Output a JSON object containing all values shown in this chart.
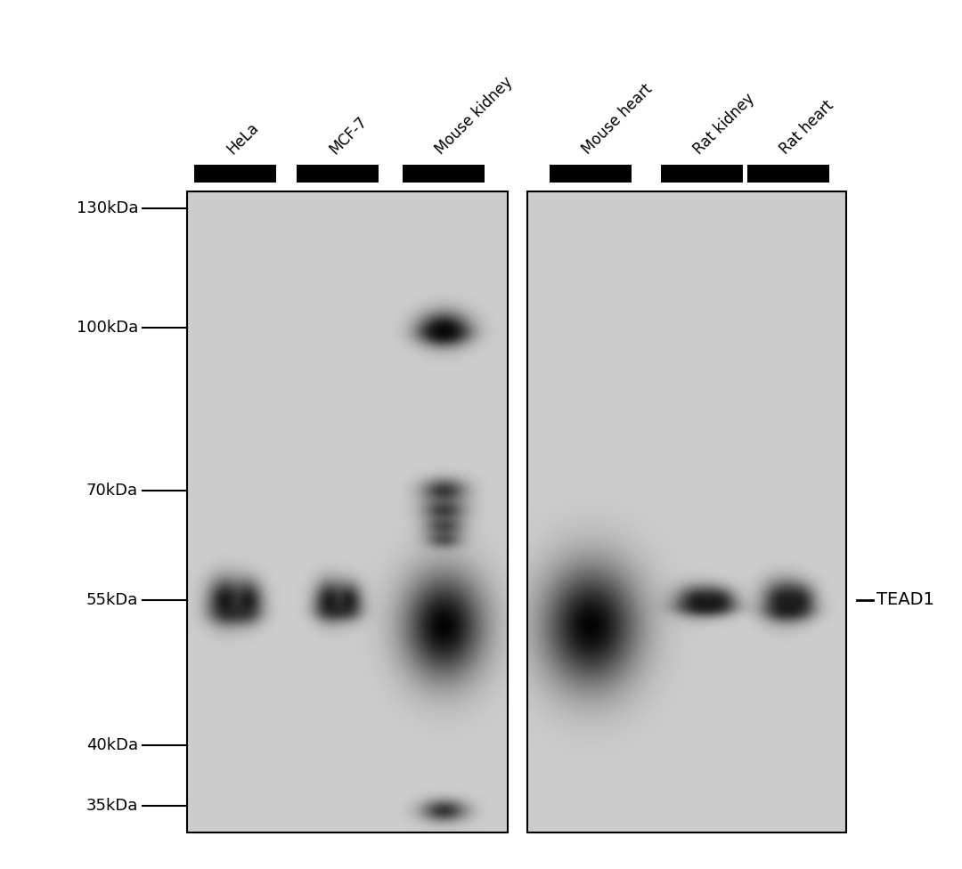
{
  "white_bg": "#ffffff",
  "panel_bg_gray": 0.8,
  "annotation_label": "TEAD1",
  "lane_labels": [
    "HeLa",
    "MCF-7",
    "Mouse kidney",
    "Mouse heart",
    "Rat kidney",
    "Rat heart"
  ],
  "mw_labels": [
    "130kDa",
    "100kDa",
    "70kDa",
    "55kDa",
    "40kDa",
    "35kDa"
  ],
  "mw_kda": [
    130,
    100,
    70,
    55,
    40,
    35
  ],
  "fig_width": 10.8,
  "fig_height": 9.76,
  "dpi": 100
}
